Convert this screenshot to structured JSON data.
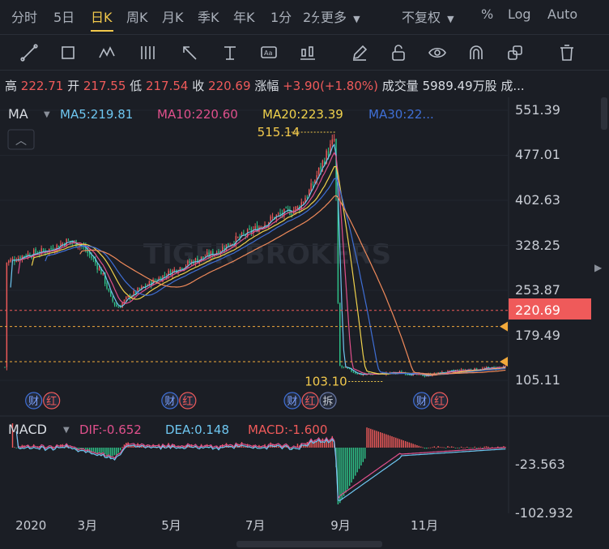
{
  "tabs": [
    {
      "label": "分时",
      "active": false
    },
    {
      "label": "5日",
      "active": false
    },
    {
      "label": "日K",
      "active": true
    },
    {
      "label": "周K",
      "active": false
    },
    {
      "label": "月K",
      "active": false
    },
    {
      "label": "季K",
      "active": false
    },
    {
      "label": "年K",
      "active": false
    },
    {
      "label": "1分",
      "active": false
    },
    {
      "label": "2分",
      "active": false
    },
    {
      "label": "更多",
      "active": false
    }
  ],
  "right_controls": {
    "adjust": "不复权",
    "percent": "%",
    "log": "Log",
    "auto": "Auto"
  },
  "toolbar_icons": [
    "line-tool-icon",
    "rectangle-tool-icon",
    "wave-tool-icon",
    "fib-tool-icon",
    "arrow-tool-icon",
    "price-line-icon",
    "text-tool-icon",
    "bar-tool-icon",
    "pencil-icon",
    "lock-icon",
    "eye-icon",
    "magnet-icon",
    "copy-icon",
    "trash-icon"
  ],
  "quote": {
    "high_label": "高",
    "high": "222.71",
    "open_label": "开",
    "open": "217.55",
    "low_label": "低",
    "low": "217.54",
    "close_label": "收",
    "close": "220.69",
    "change_label": "涨幅",
    "change": "+3.90(+1.80%)",
    "volume_label": "成交量",
    "volume": "5989.49万股",
    "more": "成..."
  },
  "ma_legend": {
    "label": "MA",
    "items": [
      {
        "text": "MA5:219.81",
        "color": "#6ec6f0"
      },
      {
        "text": "MA10:220.60",
        "color": "#e0508c"
      },
      {
        "text": "MA20:223.39",
        "color": "#f0d24c"
      },
      {
        "text": "MA30:22...",
        "color": "#3f6fd6"
      }
    ]
  },
  "macd_legend": {
    "label": "MACD",
    "items": [
      {
        "text": "DIF:-0.652",
        "color": "#e0508c"
      },
      {
        "text": "DEA:0.148",
        "color": "#6ec6f0"
      },
      {
        "text": "MACD:-1.600",
        "color": "#ef5a5a"
      }
    ]
  },
  "price_axis": [
    "551.39",
    "477.01",
    "402.63",
    "328.25",
    "253.87",
    "179.49",
    "105.11"
  ],
  "current_price_tag": "220.69",
  "macd_axis": [
    "-23.563",
    "-102.932"
  ],
  "x_axis": [
    "2020",
    "3月",
    "5月",
    "7月",
    "9月",
    "11月"
  ],
  "peak_label": "515.14",
  "trough_label": "103.10",
  "event_markers": [
    {
      "labels": [
        "财",
        "红"
      ]
    },
    {
      "labels": [
        "财",
        "红"
      ]
    },
    {
      "labels": [
        "财",
        "红",
        "拆"
      ]
    },
    {
      "labels": [
        "财",
        "红"
      ]
    }
  ],
  "watermark": "TIGER BROKERS",
  "colors": {
    "up": "#ef5a5a",
    "down": "#2fc58a",
    "accent": "#f2c94c",
    "bg": "#1b1e25"
  },
  "chart_data": {
    "type": "candlestick",
    "title": "",
    "x_ticks": [
      "2020",
      "3月",
      "5月",
      "7月",
      "9月",
      "11月"
    ],
    "y_range": [
      105.11,
      551.39
    ],
    "price_ticks": [
      551.39,
      477.01,
      402.63,
      328.25,
      253.87,
      179.49,
      105.11
    ],
    "current_price": 220.69,
    "period_high": 515.14,
    "period_low": 103.1,
    "close_series": [
      [
        "2020-01-02",
        300
      ],
      [
        "2020-01-15",
        312
      ],
      [
        "2020-02-01",
        320
      ],
      [
        "2020-02-15",
        335
      ],
      [
        "2020-02-25",
        330
      ],
      [
        "2020-03-05",
        305
      ],
      [
        "2020-03-12",
        280
      ],
      [
        "2020-03-18",
        240
      ],
      [
        "2020-03-23",
        225
      ],
      [
        "2020-04-01",
        245
      ],
      [
        "2020-04-15",
        265
      ],
      [
        "2020-05-01",
        285
      ],
      [
        "2020-05-15",
        300
      ],
      [
        "2020-06-01",
        315
      ],
      [
        "2020-06-15",
        335
      ],
      [
        "2020-07-01",
        355
      ],
      [
        "2020-07-15",
        375
      ],
      [
        "2020-08-01",
        390
      ],
      [
        "2020-08-10",
        420
      ],
      [
        "2020-08-20",
        470
      ],
      [
        "2020-08-28",
        505
      ],
      [
        "2020-08-31",
        129
      ],
      [
        "2020-09-15",
        115
      ],
      [
        "2020-10-01",
        116
      ],
      [
        "2020-10-15",
        118
      ],
      [
        "2020-11-01",
        113
      ],
      [
        "2020-11-15",
        118
      ],
      [
        "2020-12-01",
        122
      ],
      [
        "2020-12-31",
        127
      ]
    ],
    "macd_ticks": [
      -23.563,
      -102.932
    ],
    "macd": {
      "dif": -0.652,
      "dea": 0.148,
      "macd": -1.6
    },
    "grid": true
  }
}
